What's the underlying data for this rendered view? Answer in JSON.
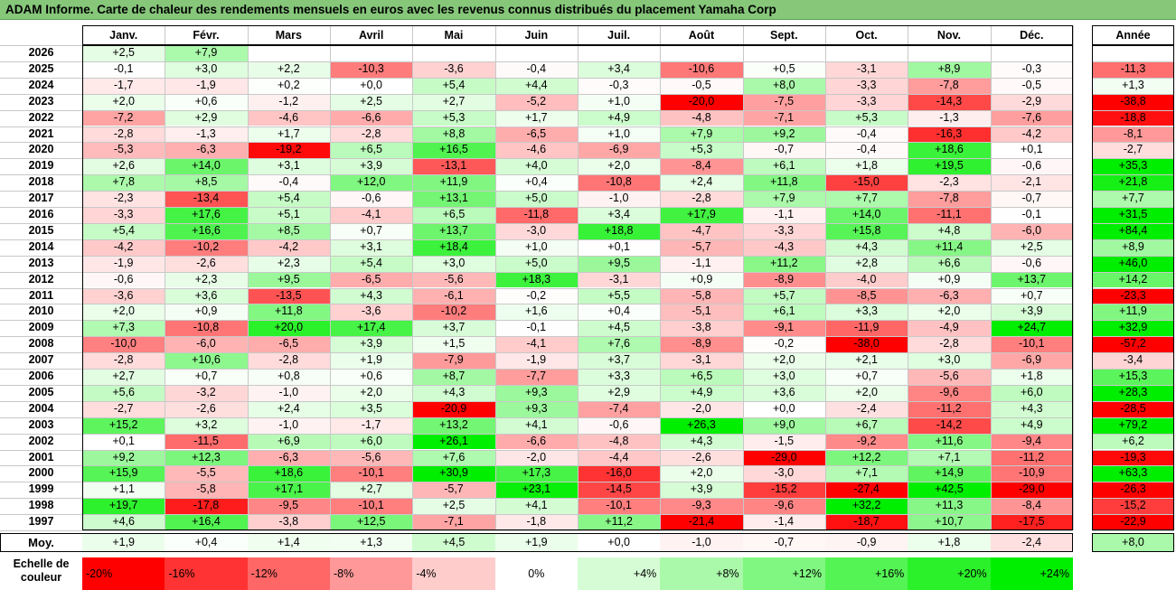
{
  "title": "ADAM Informe. Carte de chaleur des rendements mensuels en euros avec les revenus connus distribués du placement Yamaha Corp",
  "chart_data": {
    "type": "heatmap",
    "months": [
      "Janv.",
      "Févr.",
      "Mars",
      "Avril",
      "Mai",
      "Juin",
      "Juil.",
      "Août",
      "Sept.",
      "Oct.",
      "Nov.",
      "Déc."
    ],
    "year_col_label": "Année",
    "rows": [
      {
        "year": "2026",
        "m": [
          "+2,5",
          "+7,9",
          "",
          "",
          "",
          "",
          "",
          "",
          "",
          "",
          "",
          ""
        ],
        "y": ""
      },
      {
        "year": "2025",
        "m": [
          "-0,1",
          "+3,0",
          "+2,2",
          "-10,3",
          "-3,6",
          "-0,4",
          "+3,4",
          "-10,6",
          "+0,5",
          "-3,1",
          "+8,9",
          "-0,3"
        ],
        "y": "-11,3"
      },
      {
        "year": "2024",
        "m": [
          "-1,7",
          "-1,9",
          "+0,2",
          "+0,0",
          "+5,4",
          "+4,4",
          "-0,3",
          "-0,5",
          "+8,0",
          "-3,3",
          "-7,8",
          "-0,5"
        ],
        "y": "+1,3"
      },
      {
        "year": "2023",
        "m": [
          "+2,0",
          "+0,6",
          "-1,2",
          "+2,5",
          "+2,7",
          "-5,2",
          "+1,0",
          "-20,0",
          "-7,5",
          "-3,3",
          "-14,3",
          "-2,9"
        ],
        "y": "-38,8"
      },
      {
        "year": "2022",
        "m": [
          "-7,2",
          "+2,9",
          "-4,6",
          "-6,6",
          "+5,3",
          "+1,7",
          "+4,9",
          "-4,8",
          "-7,1",
          "+5,3",
          "-1,3",
          "-7,6"
        ],
        "y": "-18,8"
      },
      {
        "year": "2021",
        "m": [
          "-2,8",
          "-1,3",
          "+1,7",
          "-2,8",
          "+8,8",
          "-6,5",
          "+1,0",
          "+7,9",
          "+9,2",
          "-0,4",
          "-16,3",
          "-4,2"
        ],
        "y": "-8,1"
      },
      {
        "year": "2020",
        "m": [
          "-5,3",
          "-6,3",
          "-19,2",
          "+6,5",
          "+16,5",
          "-4,6",
          "-6,9",
          "+5,3",
          "-0,7",
          "-0,4",
          "+18,6",
          "+0,1"
        ],
        "y": "-2,7"
      },
      {
        "year": "2019",
        "m": [
          "+2,6",
          "+14,0",
          "+3,1",
          "+3,9",
          "-13,1",
          "+4,0",
          "+2,0",
          "-8,4",
          "+6,1",
          "+1,8",
          "+19,5",
          "-0,6"
        ],
        "y": "+35,3"
      },
      {
        "year": "2018",
        "m": [
          "+7,8",
          "+8,5",
          "-0,4",
          "+12,0",
          "+11,9",
          "+0,4",
          "-10,8",
          "+2,4",
          "+11,8",
          "-15,0",
          "-2,3",
          "-2,1"
        ],
        "y": "+21,8"
      },
      {
        "year": "2017",
        "m": [
          "-2,3",
          "-13,4",
          "+5,4",
          "-0,6",
          "+13,1",
          "+5,0",
          "-1,0",
          "-2,8",
          "+7,9",
          "+7,7",
          "-7,8",
          "-0,7"
        ],
        "y": "+7,7"
      },
      {
        "year": "2016",
        "m": [
          "-3,3",
          "+17,6",
          "+5,1",
          "-4,1",
          "+6,5",
          "-11,8",
          "+3,4",
          "+17,9",
          "-1,1",
          "+14,0",
          "-11,1",
          "-0,1"
        ],
        "y": "+31,5"
      },
      {
        "year": "2015",
        "m": [
          "+5,4",
          "+16,6",
          "+8,5",
          "+0,7",
          "+13,7",
          "-3,0",
          "+18,8",
          "-4,7",
          "-3,3",
          "+15,8",
          "+4,8",
          "-6,0"
        ],
        "y": "+84,4"
      },
      {
        "year": "2014",
        "m": [
          "-4,2",
          "-10,2",
          "-4,2",
          "+3,1",
          "+18,4",
          "+1,0",
          "+0,1",
          "-5,7",
          "-4,3",
          "+4,3",
          "+11,4",
          "+2,5"
        ],
        "y": "+8,9"
      },
      {
        "year": "2013",
        "m": [
          "-1,9",
          "-2,6",
          "+2,3",
          "+5,4",
          "+3,0",
          "+5,0",
          "+9,5",
          "-1,1",
          "+11,2",
          "+2,8",
          "+6,6",
          "-0,6"
        ],
        "y": "+46,0"
      },
      {
        "year": "2012",
        "m": [
          "-0,6",
          "+2,3",
          "+9,5",
          "-6,5",
          "-5,6",
          "+18,3",
          "-3,1",
          "+0,9",
          "-8,9",
          "-4,0",
          "+0,9",
          "+13,7"
        ],
        "y": "+14,2"
      },
      {
        "year": "2011",
        "m": [
          "-3,6",
          "+3,6",
          "-13,5",
          "+4,3",
          "-6,1",
          "-0,2",
          "+5,5",
          "-5,8",
          "+5,7",
          "-8,5",
          "-6,3",
          "+0,7"
        ],
        "y": "-23,3"
      },
      {
        "year": "2010",
        "m": [
          "+2,0",
          "+0,9",
          "+11,8",
          "-3,6",
          "-10,2",
          "+1,6",
          "+0,4",
          "-5,1",
          "+6,1",
          "+3,3",
          "+2,0",
          "+3,9"
        ],
        "y": "+11,9"
      },
      {
        "year": "2009",
        "m": [
          "+7,3",
          "-10,8",
          "+20,0",
          "+17,4",
          "+3,7",
          "-0,1",
          "+4,5",
          "-3,8",
          "-9,1",
          "-11,9",
          "-4,9",
          "+24,7"
        ],
        "y": "+32,9"
      },
      {
        "year": "2008",
        "m": [
          "-10,0",
          "-6,0",
          "-6,5",
          "+3,9",
          "+1,5",
          "-4,1",
          "+7,6",
          "-8,9",
          "-0,2",
          "-38,0",
          "-2,8",
          "-10,1"
        ],
        "y": "-57,2"
      },
      {
        "year": "2007",
        "m": [
          "-2,8",
          "+10,6",
          "-2,8",
          "+1,9",
          "-7,9",
          "-1,9",
          "+3,7",
          "-3,1",
          "+2,0",
          "+2,1",
          "+3,0",
          "-6,9"
        ],
        "y": "-3,4"
      },
      {
        "year": "2006",
        "m": [
          "+2,7",
          "+0,7",
          "+0,8",
          "+0,6",
          "+8,7",
          "-7,7",
          "+3,3",
          "+6,5",
          "+3,0",
          "+0,7",
          "-5,6",
          "+1,8"
        ],
        "y": "+15,3"
      },
      {
        "year": "2005",
        "m": [
          "+5,6",
          "-3,2",
          "-1,0",
          "+2,0",
          "+4,3",
          "+9,3",
          "+2,9",
          "+4,9",
          "+3,6",
          "+2,0",
          "-9,6",
          "+6,0"
        ],
        "y": "+28,3"
      },
      {
        "year": "2004",
        "m": [
          "-2,7",
          "-2,6",
          "+2,4",
          "+3,5",
          "-20,9",
          "+9,3",
          "-7,4",
          "-2,0",
          "+0,0",
          "-2,4",
          "-11,2",
          "+4,3"
        ],
        "y": "-28,5"
      },
      {
        "year": "2003",
        "m": [
          "+15,2",
          "+3,2",
          "-1,0",
          "-1,7",
          "+13,2",
          "+4,1",
          "-0,6",
          "+26,3",
          "+9,0",
          "+6,7",
          "-14,2",
          "+4,9"
        ],
        "y": "+79,2"
      },
      {
        "year": "2002",
        "m": [
          "+0,1",
          "-11,5",
          "+6,9",
          "+6,0",
          "+26,1",
          "-6,6",
          "-4,8",
          "+4,3",
          "-1,5",
          "-9,2",
          "+11,6",
          "-9,4"
        ],
        "y": "+6,2"
      },
      {
        "year": "2001",
        "m": [
          "+9,2",
          "+12,3",
          "-6,3",
          "-5,6",
          "+7,6",
          "-2,0",
          "-4,4",
          "-2,6",
          "-29,0",
          "+12,2",
          "+7,1",
          "-11,2"
        ],
        "y": "-19,3"
      },
      {
        "year": "2000",
        "m": [
          "+15,9",
          "-5,5",
          "+18,6",
          "-10,1",
          "+30,9",
          "+17,3",
          "-16,0",
          "+2,0",
          "-3,0",
          "+7,1",
          "+14,9",
          "-10,9"
        ],
        "y": "+63,3"
      },
      {
        "year": "1999",
        "m": [
          "+1,1",
          "-5,8",
          "+17,1",
          "+2,7",
          "-5,7",
          "+23,1",
          "-14,5",
          "+3,9",
          "-15,2",
          "-27,4",
          "+42,5",
          "-29,0"
        ],
        "y": "-26,3"
      },
      {
        "year": "1998",
        "m": [
          "+19,7",
          "-17,8",
          "-9,5",
          "-10,1",
          "+2,5",
          "+4,1",
          "-10,1",
          "-9,3",
          "-9,6",
          "+32,2",
          "+11,3",
          "-8,4"
        ],
        "y": "-15,2"
      },
      {
        "year": "1997",
        "m": [
          "+4,6",
          "+16,4",
          "-3,8",
          "+12,5",
          "-7,1",
          "-1,8",
          "+11,2",
          "-21,4",
          "-1,4",
          "-18,7",
          "+10,7",
          "-17,5"
        ],
        "y": "-22,9"
      }
    ],
    "average": {
      "label": "Moy.",
      "m": [
        "+1,9",
        "+0,4",
        "+1,4",
        "+1,3",
        "+4,5",
        "+1,9",
        "+0,0",
        "-1,0",
        "-0,7",
        "-0,9",
        "+1,8",
        "-2,4"
      ],
      "y": "+8,0"
    },
    "legend": {
      "label_line1": "Echelle de",
      "label_line2": "couleur",
      "items": [
        {
          "text": "-20%",
          "value": -20
        },
        {
          "text": "-16%",
          "value": -16
        },
        {
          "text": "-12%",
          "value": -12
        },
        {
          "text": "-8%",
          "value": -8
        },
        {
          "text": "-4%",
          "value": -4
        },
        {
          "text": "0%",
          "value": 0
        },
        {
          "text": "+4%",
          "value": 4
        },
        {
          "text": "+8%",
          "value": 8
        },
        {
          "text": "+12%",
          "value": 12
        },
        {
          "text": "+16%",
          "value": 16
        },
        {
          "text": "+20%",
          "value": 20
        },
        {
          "text": "+24%",
          "value": 24
        }
      ]
    },
    "colors": {
      "negative": "#ff0000",
      "neutral": "#ffffff",
      "positive": "#00ee00",
      "header_bar": "#86c77a"
    }
  }
}
